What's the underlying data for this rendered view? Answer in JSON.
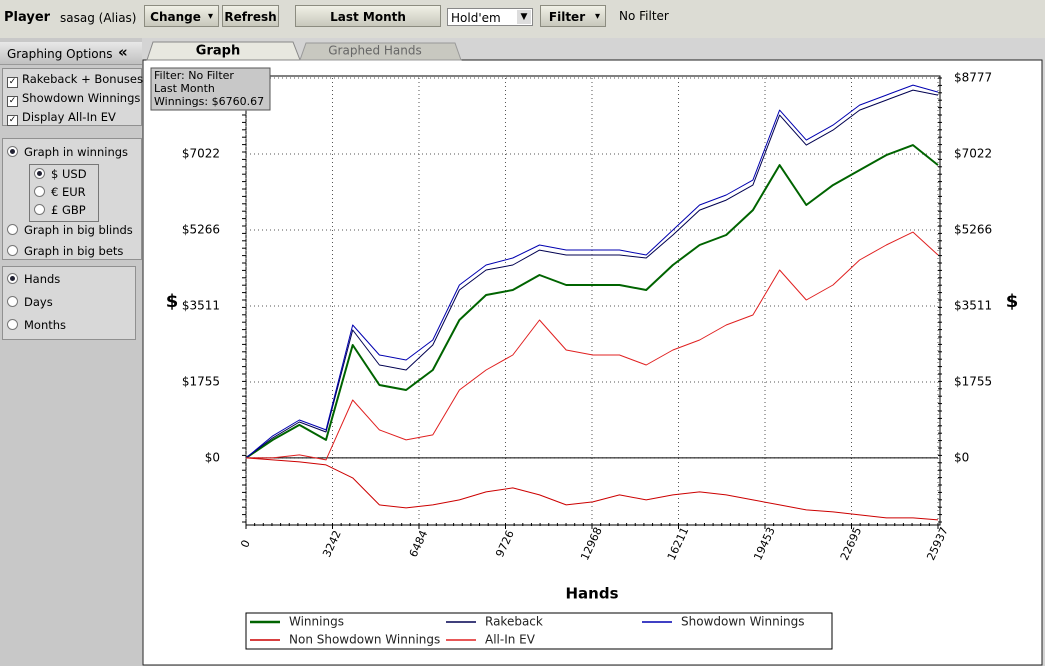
{
  "toolbar": {
    "player_label": "Player",
    "alias": "sasag (Alias)",
    "change": "Change",
    "refresh": "Refresh",
    "period": "Last Month",
    "game": "Hold'em",
    "filter": "Filter",
    "filter_status": "No Filter"
  },
  "sidebar": {
    "title": "Graphing Options",
    "collapse": "«",
    "checks": [
      "Rakeback + Bonuses",
      "Showdown Winnings",
      "Display All-In EV"
    ],
    "graph_in": [
      "Graph in winnings",
      "Graph in big blinds",
      "Graph in big bets"
    ],
    "currencies": [
      "$ USD",
      "€ EUR",
      "£ GBP"
    ],
    "x_modes": [
      "Hands",
      "Days",
      "Months"
    ]
  },
  "tabs": [
    "Graph",
    "Graphed Hands"
  ],
  "chart_data": {
    "type": "line",
    "info_box": [
      "Filter: No Filter",
      "Last Month",
      "Winnings: $6760.67"
    ],
    "xlabel": "Hands",
    "ylabel": "$",
    "y2label": "$",
    "x": [
      0,
      1000,
      2000,
      3000,
      4000,
      5000,
      6000,
      7000,
      8000,
      9000,
      10000,
      11000,
      12000,
      13000,
      14000,
      15000,
      16000,
      17000,
      18000,
      19000,
      20000,
      21000,
      22000,
      23000,
      24000,
      25000,
      25937
    ],
    "series": [
      {
        "name": "Winnings",
        "color": "#006400",
        "width": 2,
        "values": [
          0,
          416,
          762,
          416,
          2609,
          1686,
          1570,
          2032,
          3186,
          3764,
          3879,
          4225,
          3995,
          3995,
          3995,
          3879,
          4456,
          4918,
          5149,
          5726,
          6765,
          5842,
          6304,
          6650,
          6996,
          7227,
          6765
        ]
      },
      {
        "name": "Rakeback",
        "color": "#000050",
        "width": 1,
        "values": [
          0,
          462,
          831,
          600,
          2956,
          2147,
          2032,
          2609,
          3879,
          4341,
          4456,
          4802,
          4687,
          4687,
          4687,
          4618,
          5149,
          5726,
          5957,
          6304,
          7920,
          7227,
          7573,
          8035,
          8266,
          8497,
          8382
        ]
      },
      {
        "name": "Showdown Winnings",
        "color": "#0000b0",
        "width": 1,
        "values": [
          0,
          508,
          877,
          647,
          3071,
          2378,
          2263,
          2725,
          3995,
          4456,
          4618,
          4918,
          4803,
          4803,
          4803,
          4687,
          5265,
          5842,
          6073,
          6419,
          8035,
          7343,
          7689,
          8151,
          8382,
          8613,
          8451
        ]
      },
      {
        "name": "Non Showdown Winnings",
        "color": "#cc0000",
        "width": 1,
        "values": [
          0,
          -46,
          -92,
          -162,
          -462,
          -1085,
          -1155,
          -1085,
          -970,
          -785,
          -693,
          -855,
          -1085,
          -1016,
          -855,
          -970,
          -855,
          -785,
          -855,
          -970,
          -1085,
          -1201,
          -1247,
          -1316,
          -1385,
          -1385,
          -1432
        ]
      },
      {
        "name": "All-In EV",
        "color": "#e02020",
        "width": 1,
        "values": [
          0,
          0,
          69,
          -46,
          1339,
          647,
          416,
          531,
          1570,
          2032,
          2378,
          3186,
          2494,
          2378,
          2378,
          2147,
          2494,
          2725,
          3071,
          3302,
          4341,
          3648,
          3995,
          4572,
          4918,
          5218,
          4687
        ]
      }
    ],
    "xlim": [
      0,
      25937
    ],
    "ylim": [
      -1480,
      8777
    ],
    "xticks": [
      0,
      3242,
      6484,
      9726,
      12968,
      16211,
      19453,
      22695,
      25937
    ],
    "yticks": [
      {
        "value": 0,
        "label": "$0"
      },
      {
        "value": 1755,
        "label": "$1755"
      },
      {
        "value": 3511,
        "label": "$3511"
      },
      {
        "value": 5266,
        "label": "$5266"
      },
      {
        "value": 7022,
        "label": "$7022"
      },
      {
        "value": 8777,
        "label": "$8777"
      }
    ],
    "grid": true
  }
}
